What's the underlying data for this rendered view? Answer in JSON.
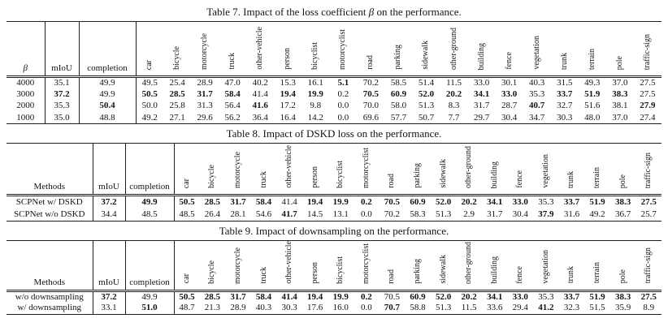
{
  "page": {
    "kind": "academic-paper-tables",
    "colors": {
      "bg": "#ffffff",
      "ink": "#141414",
      "rule": "#1e1e1e"
    }
  },
  "tables": [
    {
      "id": "table-7",
      "caption_runs": [
        {
          "text": "Table 7. Impact of the loss coefficient "
        },
        {
          "text": "β",
          "italic": true
        },
        {
          "text": " on the performance."
        }
      ],
      "header": {
        "label": "β",
        "label_italic": true,
        "fixed": [
          "mIoU",
          "completion"
        ],
        "classes": [
          "car",
          "bicycle",
          "motorcycle",
          "truck",
          "other-vehicle",
          "person",
          "bicyclist",
          "motorcyclist",
          "road",
          "parking",
          "sidewalk",
          "other-ground",
          "building",
          "fence",
          "vegetation",
          "trunk",
          "terrain",
          "pole",
          "traffic-sign"
        ]
      },
      "rows": [
        {
          "label": "4000",
          "values": [
            "35.1",
            "49.9",
            "49.5",
            "25.4",
            "28.9",
            "47.0",
            "40.2",
            "15.3",
            "16.1",
            "5.1",
            "70.2",
            "58.5",
            "51.4",
            "11.5",
            "33.0",
            "30.1",
            "40.3",
            "31.5",
            "49.3",
            "37.0",
            "27.5"
          ],
          "bold_indices": [
            9
          ]
        },
        {
          "label": "3000",
          "values": [
            "37.2",
            "49.9",
            "50.5",
            "28.5",
            "31.7",
            "58.4",
            "41.4",
            "19.4",
            "19.9",
            "0.2",
            "70.5",
            "60.9",
            "52.0",
            "20.2",
            "34.1",
            "33.0",
            "35.3",
            "33.7",
            "51.9",
            "38.3",
            "27.5"
          ],
          "bold_indices": [
            0,
            2,
            3,
            4,
            5,
            7,
            8,
            10,
            11,
            12,
            13,
            14,
            15,
            17,
            18,
            19
          ]
        },
        {
          "label": "2000",
          "values": [
            "35.3",
            "50.4",
            "50.0",
            "25.8",
            "31.3",
            "56.4",
            "41.6",
            "17.2",
            "9.8",
            "0.0",
            "70.0",
            "58.0",
            "51.3",
            "8.3",
            "31.7",
            "28.7",
            "40.7",
            "32.7",
            "51.6",
            "38.1",
            "27.9"
          ],
          "bold_indices": [
            1,
            6,
            16,
            20
          ]
        },
        {
          "label": "1000",
          "values": [
            "35.0",
            "48.8",
            "49.2",
            "27.1",
            "29.6",
            "56.2",
            "36.4",
            "16.4",
            "14.2",
            "0.0",
            "69.6",
            "57.7",
            "50.7",
            "7.7",
            "29.7",
            "30.4",
            "34.7",
            "30.3",
            "48.0",
            "37.0",
            "27.4"
          ],
          "bold_indices": []
        }
      ]
    },
    {
      "id": "table-8",
      "caption_runs": [
        {
          "text": "Table 8. Impact of DSKD loss on the performance."
        }
      ],
      "header": {
        "label": "Methods",
        "label_italic": false,
        "fixed": [
          "mIoU",
          "completion"
        ],
        "classes": [
          "car",
          "bicycle",
          "motorcycle",
          "truck",
          "other-vehicle",
          "person",
          "bicyclist",
          "motorcyclist",
          "road",
          "parking",
          "sidewalk",
          "other-ground",
          "building",
          "fence",
          "vegetation",
          "trunk",
          "terrain",
          "pole",
          "traffic-sign"
        ]
      },
      "rows": [
        {
          "label": "SCPNet w/ DSKD",
          "values": [
            "37.2",
            "49.9",
            "50.5",
            "28.5",
            "31.7",
            "58.4",
            "41.4",
            "19.4",
            "19.9",
            "0.2",
            "70.5",
            "60.9",
            "52.0",
            "20.2",
            "34.1",
            "33.0",
            "35.3",
            "33.7",
            "51.9",
            "38.3",
            "27.5"
          ],
          "bold_indices": [
            0,
            1,
            2,
            3,
            4,
            5,
            7,
            8,
            9,
            10,
            11,
            12,
            13,
            14,
            15,
            17,
            18,
            19,
            20
          ]
        },
        {
          "label": "SCPNet w/o DSKD",
          "values": [
            "34.4",
            "48.5",
            "48.5",
            "26.4",
            "28.1",
            "54.6",
            "41.7",
            "14.5",
            "13.1",
            "0.0",
            "70.2",
            "58.3",
            "51.3",
            "2.9",
            "31.7",
            "30.4",
            "37.9",
            "31.6",
            "49.2",
            "36.7",
            "25.7"
          ],
          "bold_indices": [
            6,
            16
          ]
        }
      ]
    },
    {
      "id": "table-9",
      "caption_runs": [
        {
          "text": "Table 9. Impact of downsampling on the performance."
        }
      ],
      "header": {
        "label": "Methods",
        "label_italic": false,
        "fixed": [
          "mIoU",
          "completion"
        ],
        "classes": [
          "car",
          "bicycle",
          "motorcycle",
          "truck",
          "other-vehicle",
          "person",
          "bicyclist",
          "motorcyclist",
          "road",
          "parking",
          "sidewalk",
          "other-ground",
          "building",
          "fence",
          "vegetation",
          "trunk",
          "terrain",
          "pole",
          "traffic-sign"
        ]
      },
      "rows": [
        {
          "label": "w/o downsampling",
          "values": [
            "37.2",
            "49.9",
            "50.5",
            "28.5",
            "31.7",
            "58.4",
            "41.4",
            "19.4",
            "19.9",
            "0.2",
            "70.5",
            "60.9",
            "52.0",
            "20.2",
            "34.1",
            "33.0",
            "35.3",
            "33.7",
            "51.9",
            "38.3",
            "27.5"
          ],
          "bold_indices": [
            0,
            2,
            3,
            4,
            5,
            6,
            7,
            8,
            9,
            11,
            12,
            13,
            14,
            15,
            17,
            18,
            19,
            20
          ]
        },
        {
          "label": "w/ downsampling",
          "values": [
            "33.1",
            "51.0",
            "48.7",
            "21.3",
            "28.9",
            "40.3",
            "30.3",
            "17.6",
            "16.0",
            "0.0",
            "70.7",
            "58.8",
            "51.3",
            "11.5",
            "33.6",
            "29.4",
            "41.2",
            "32.3",
            "51.5",
            "35.9",
            "8.9"
          ],
          "bold_indices": [
            1,
            10,
            16
          ]
        }
      ]
    }
  ]
}
